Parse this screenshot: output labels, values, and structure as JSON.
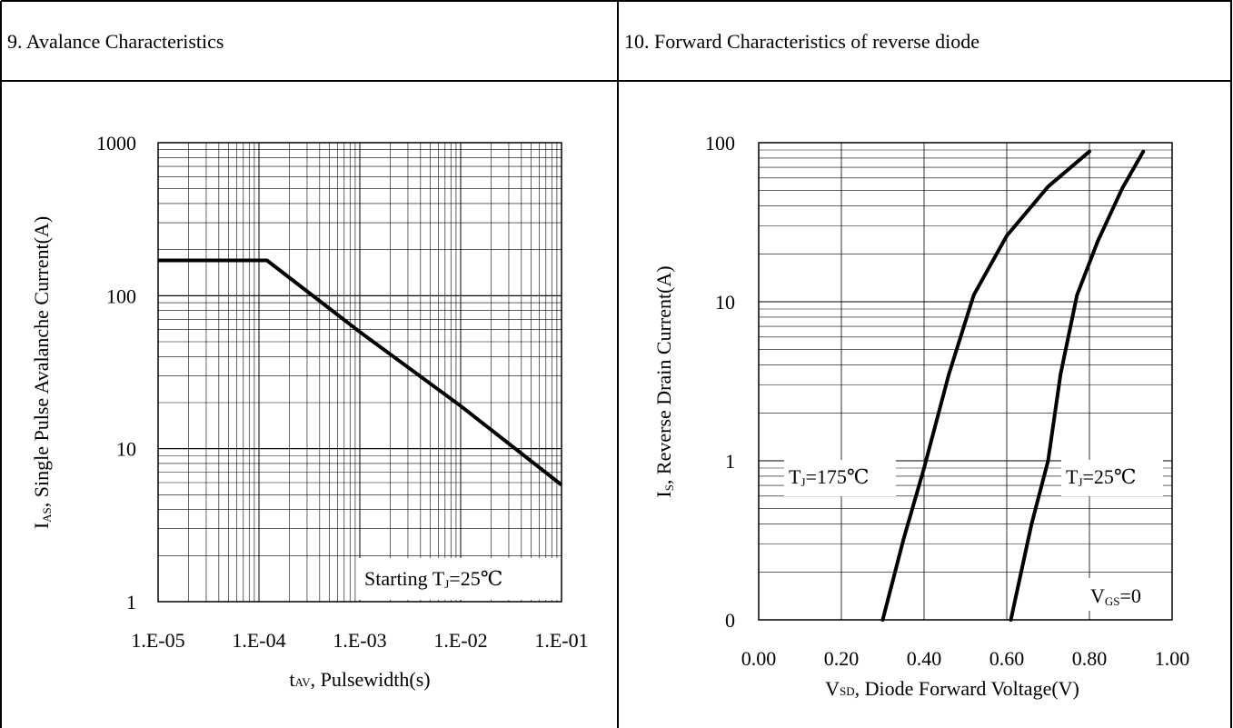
{
  "panels": {
    "left_header": "9. Avalance Characteristics",
    "right_header": "10. Forward Characteristics of reverse diode"
  },
  "chart_data": [
    {
      "type": "line",
      "x_scale": "log",
      "y_scale": "log",
      "xlim": [
        1e-05,
        0.1
      ],
      "ylim": [
        1,
        1000
      ],
      "x_ticks": [
        1e-05,
        0.0001,
        0.001,
        0.01,
        0.1
      ],
      "x_tick_labels": [
        "1.E-05",
        "1.E-04",
        "1.E-03",
        "1.E-02",
        "1.E-01"
      ],
      "y_ticks": [
        1,
        10,
        100,
        1000
      ],
      "y_tick_labels": [
        "1",
        "10",
        "100",
        "1000"
      ],
      "xlabel": {
        "main": "t",
        "sub": "AV",
        "rest": ", Pulsewidth(s)"
      },
      "ylabel": {
        "main": "I",
        "sub": "AS",
        "rest": ", Single Pulse Avalanche Current(A)"
      },
      "grid": true,
      "annotation": {
        "main": "Starting T",
        "sub": "J",
        "rest": "=25℃"
      },
      "series": [
        {
          "x": [
            1e-05,
            0.00012,
            0.001,
            0.01,
            0.1
          ],
          "y": [
            170,
            170,
            58,
            19,
            5.8
          ]
        }
      ]
    },
    {
      "type": "line",
      "x_scale": "linear",
      "y_scale": "log",
      "xlim": [
        0,
        1.0
      ],
      "ylim": [
        0.1,
        100
      ],
      "x_ticks": [
        0,
        0.2,
        0.4,
        0.6,
        0.8,
        1.0
      ],
      "x_tick_labels": [
        "0.00",
        "0.20",
        "0.40",
        "0.60",
        "0.80",
        "1.00"
      ],
      "y_ticks": [
        0.1,
        1,
        10,
        100
      ],
      "y_tick_labels": [
        "0",
        "1",
        "10",
        "100"
      ],
      "xlabel": {
        "main": "V",
        "sub": "SD",
        "rest": ", Diode Forward Voltage(V)"
      },
      "ylabel": {
        "main": "I",
        "sub": "S",
        "rest": ", Reverse Drain Current(A)"
      },
      "grid": true,
      "annotations": [
        {
          "main": "T",
          "sub": "J",
          "rest": "=175℃"
        },
        {
          "main": "T",
          "sub": "J",
          "rest": "=25℃"
        },
        {
          "main": "V",
          "sub": "GS",
          "rest": "=0"
        }
      ],
      "series": [
        {
          "x": [
            0.3,
            0.35,
            0.4,
            0.46,
            0.52,
            0.6,
            0.7,
            0.8
          ],
          "y": [
            0.1,
            0.32,
            0.9,
            3.5,
            11,
            26,
            53,
            88
          ]
        },
        {
          "x": [
            0.61,
            0.66,
            0.7,
            0.73,
            0.77,
            0.82,
            0.88,
            0.93
          ],
          "y": [
            0.1,
            0.4,
            1.0,
            3.5,
            11,
            24,
            52,
            88
          ]
        }
      ]
    }
  ]
}
